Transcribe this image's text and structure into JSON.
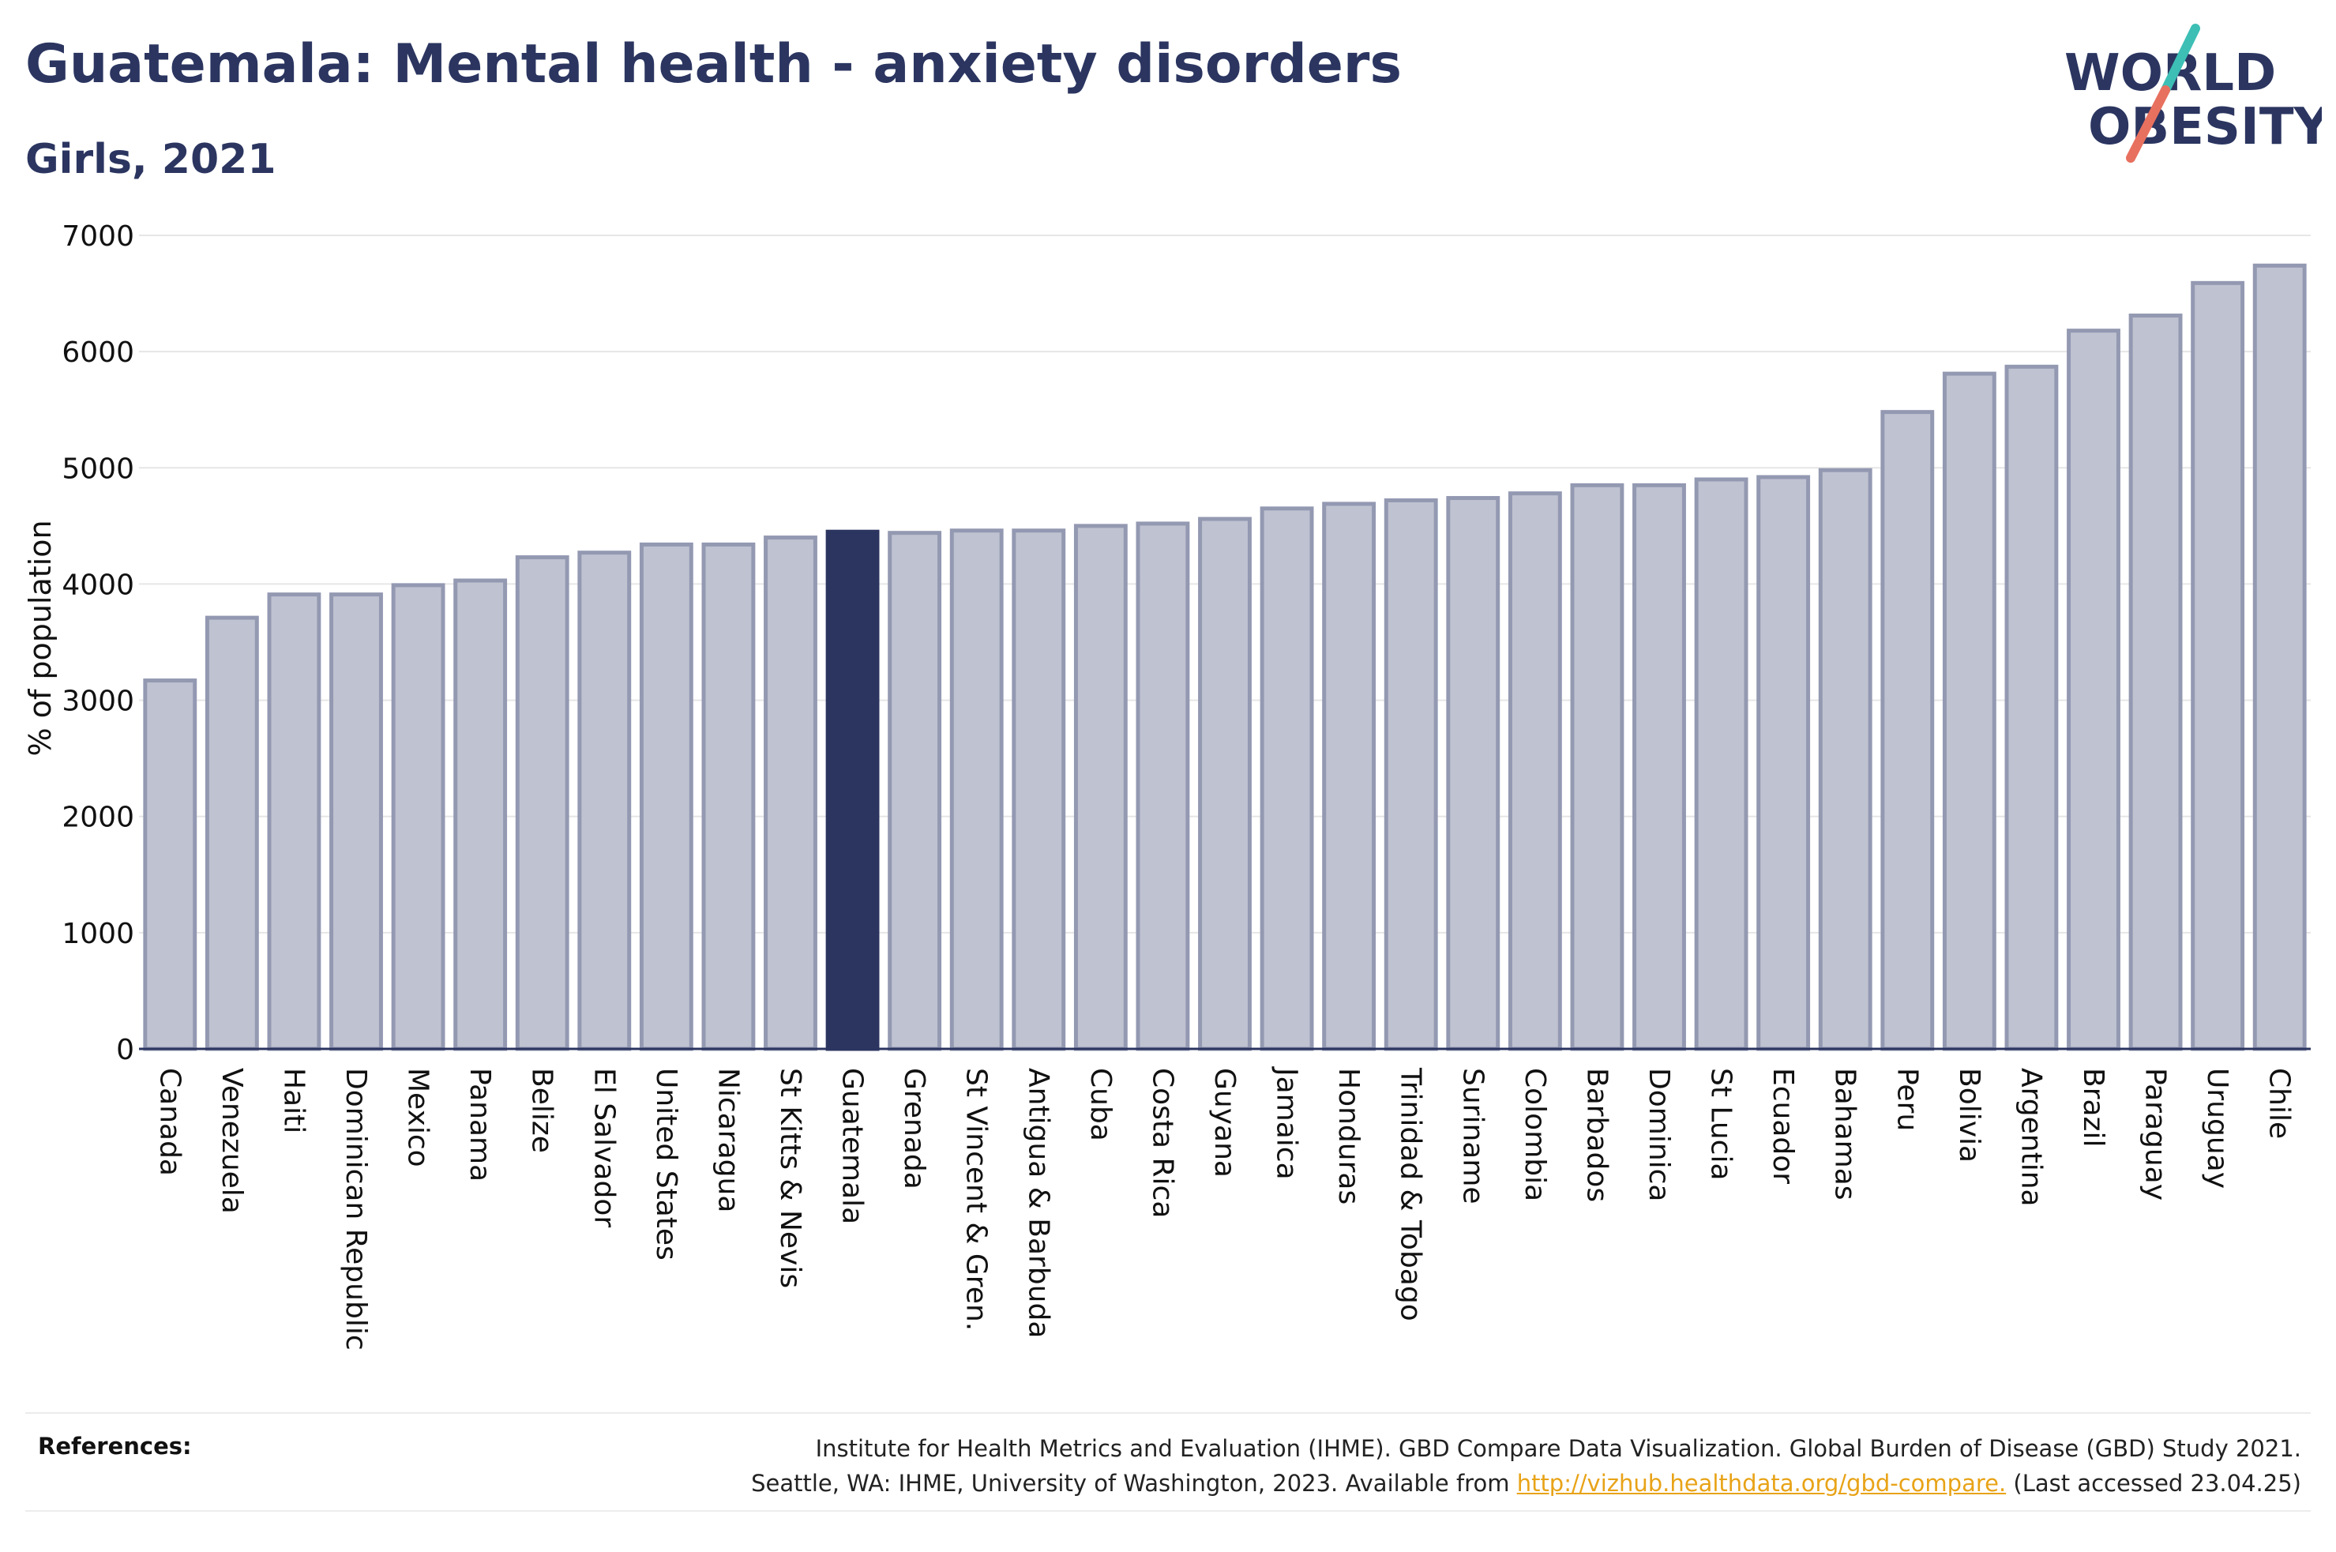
{
  "header": {
    "title": "Guatemala: Mental health - anxiety disorders",
    "subtitle": "Girls, 2021"
  },
  "logo": {
    "line1": "WORLD",
    "line2": "OBESITY",
    "text_color": "#2b3560",
    "slash_colors": [
      "#3dbfb5",
      "#e8705f"
    ]
  },
  "chart_data": {
    "type": "bar",
    "ylabel": "% of population",
    "xlabel": "",
    "ylim": [
      0,
      7000
    ],
    "yticks": [
      0,
      1000,
      2000,
      3000,
      4000,
      5000,
      6000,
      7000
    ],
    "grid": true,
    "highlight": "Guatemala",
    "colors": {
      "bar": "#bfc2d0",
      "bar_border": "#9499b2",
      "highlight": "#2b3560"
    },
    "categories": [
      "Canada",
      "Venezuela",
      "Haiti",
      "Dominican Republic",
      "Mexico",
      "Panama",
      "Belize",
      "El Salvador",
      "United States",
      "Nicaragua",
      "St Kitts & Nevis",
      "Guatemala",
      "Grenada",
      "St Vincent & Gren.",
      "Antigua & Barbuda",
      "Cuba",
      "Costa Rica",
      "Guyana",
      "Jamaica",
      "Honduras",
      "Trinidad & Tobago",
      "Suriname",
      "Colombia",
      "Barbados",
      "Dominica",
      "St Lucia",
      "Ecuador",
      "Bahamas",
      "Peru",
      "Bolivia",
      "Argentina",
      "Brazil",
      "Paraguay",
      "Uruguay",
      "Chile"
    ],
    "values": [
      3170,
      3710,
      3910,
      3910,
      3990,
      4030,
      4230,
      4270,
      4340,
      4340,
      4400,
      4450,
      4440,
      4460,
      4460,
      4500,
      4520,
      4560,
      4650,
      4690,
      4720,
      4740,
      4780,
      4850,
      4850,
      4900,
      4920,
      4980,
      5480,
      5810,
      5870,
      6180,
      6310,
      6590,
      6740
    ]
  },
  "references": {
    "label": "References:",
    "line1": "Institute for Health Metrics and Evaluation (IHME). GBD Compare Data Visualization. Global Burden of Disease (GBD) Study 2021.",
    "line2_prefix": "Seattle, WA: IHME, University of Washington, 2023. Available from ",
    "link": "http://vizhub.healthdata.org/gbd-compare.",
    "line2_suffix": " (Last accessed 23.04.25)"
  }
}
